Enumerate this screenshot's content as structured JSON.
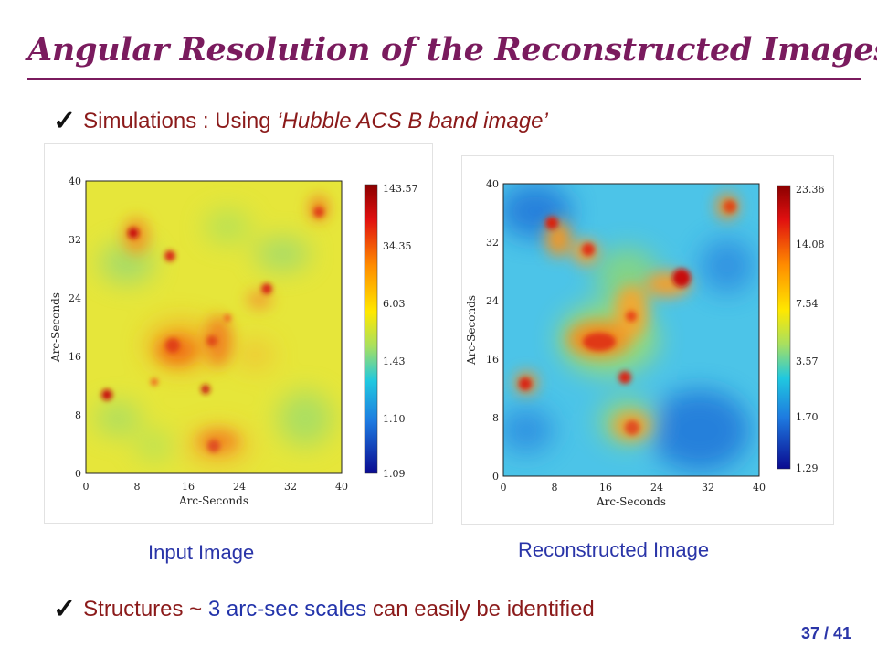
{
  "title": "Angular Resolution of the Reconstructed Images",
  "bullets": {
    "first": {
      "prefix": "Simulations : Using ",
      "emphasis": "‘Hubble ACS B band image’"
    },
    "second": {
      "prefix": "Structures ~ ",
      "highlight": "3 arc-sec scales",
      "suffix": " can easily be identified"
    }
  },
  "left_panel": {
    "caption": "Input Image",
    "xlabel": "Arc-Seconds",
    "ylabel": "Arc-Seconds",
    "xticks": [
      "0",
      "8",
      "16",
      "24",
      "32",
      "40"
    ],
    "yticks": [
      "40",
      "32",
      "24",
      "16",
      "8",
      "0"
    ],
    "colorbar_labels": [
      "143.57",
      "34.35",
      "6.03",
      "1.43",
      "1.10",
      "1.09"
    ]
  },
  "right_panel": {
    "caption": "Reconstructed Image",
    "xlabel": "Arc-Seconds",
    "ylabel": "Arc-Seconds",
    "xticks": [
      "0",
      "8",
      "16",
      "24",
      "32",
      "40"
    ],
    "yticks": [
      "40",
      "32",
      "24",
      "16",
      "8",
      "0"
    ],
    "colorbar_labels": [
      "23.36",
      "14.08",
      "7.54",
      "3.57",
      "1.70",
      "1.29"
    ]
  },
  "page_number": "37 / 41",
  "colors": {
    "title": "#7a1b5e",
    "bullet_text": "#8b1a1a",
    "highlight": "#2233aa",
    "caption": "#2a35a8"
  }
}
